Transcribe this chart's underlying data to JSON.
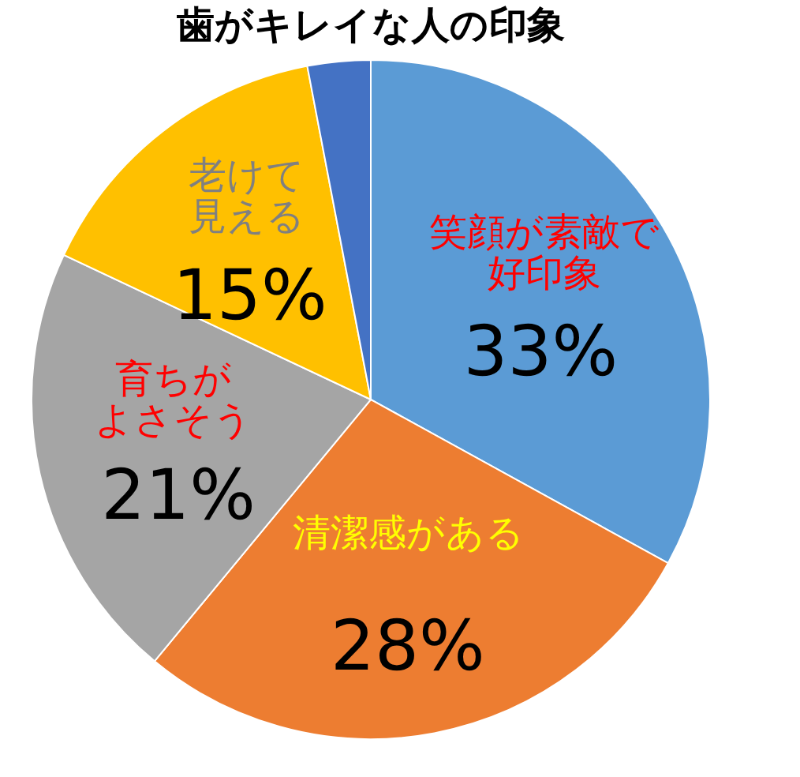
{
  "chart_data": {
    "type": "pie",
    "title": "歯がキレイな人の印象",
    "categories": [
      "笑顔が素敵で好印象",
      "清潔感がある",
      "育ちがよさそう",
      "老けて見える",
      null
    ],
    "values": [
      33,
      28,
      21,
      15,
      3
    ],
    "colors": [
      "#5b9bd5",
      "#ed7d31",
      "#a5a5a5",
      "#ffc000",
      "#4472c4"
    ],
    "value_labels": [
      "33%",
      "28%",
      "21%",
      "15%",
      null
    ],
    "legend": false
  }
}
